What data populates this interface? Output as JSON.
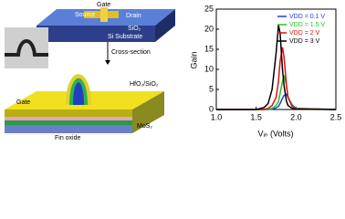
{
  "diagram": {
    "gate_top": "Gate",
    "source": "Source",
    "drain": "Drain",
    "sio2": "SiO₂",
    "substrate": "Si Substrate",
    "cross_section": "Cross-section",
    "hfo2": "HfO₂/SiO₂",
    "gate": "Gate",
    "mos2": "MoS₂",
    "fin_oxide": "Fin oxide"
  },
  "chart_data": {
    "type": "line",
    "xlabel": "Vᵢₙ (Volts)",
    "ylabel": "Gain",
    "x": [
      1.0,
      1.5,
      1.6,
      1.65,
      1.7,
      1.75,
      1.78,
      1.8,
      1.83,
      1.85,
      1.88,
      1.9,
      1.95,
      2.0,
      2.5
    ],
    "series": [
      {
        "name": "VDD = 0.1 V",
        "color": "#1f3fe0",
        "values": [
          0,
          0,
          0,
          0,
          0.1,
          0.4,
          0.8,
          1.5,
          2.8,
          3.5,
          3.8,
          3,
          1.2,
          0.3,
          0
        ]
      },
      {
        "name": "VDD = 1.5 V",
        "color": "#22c422",
        "values": [
          0,
          0,
          0,
          0.1,
          0.3,
          1,
          2,
          4,
          7,
          8.5,
          6,
          3,
          1,
          0.3,
          0
        ]
      },
      {
        "name": "VDD = 2 V",
        "color": "#e01010",
        "values": [
          0,
          0,
          0,
          0.3,
          1,
          3,
          7,
          12,
          15.5,
          13,
          6,
          3,
          0.8,
          0.2,
          0
        ]
      },
      {
        "name": "VDD = 3 V",
        "color": "#000000",
        "values": [
          0,
          0,
          0.5,
          1.5,
          5,
          14,
          21,
          19,
          10,
          6,
          2,
          1,
          0.3,
          0.1,
          0
        ]
      }
    ],
    "xlim": [
      1.0,
      2.5
    ],
    "xticks": [
      {
        "value": 1.0,
        "label": "1.0"
      },
      1.5,
      {
        "value": 2.0,
        "label": "2.0"
      },
      2.5
    ],
    "ylim": [
      0,
      25
    ],
    "yticks": [
      0,
      5,
      10,
      15,
      20,
      25
    ],
    "legend": "upper-right"
  }
}
